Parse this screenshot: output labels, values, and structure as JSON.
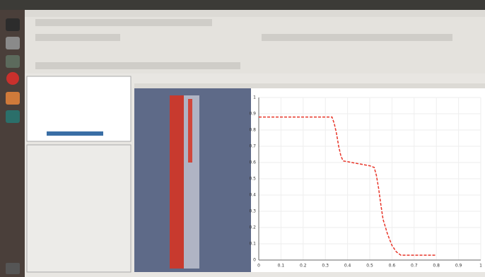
{
  "chart_data": {
    "type": "line",
    "x": [
      0,
      0.05,
      0.1,
      0.15,
      0.2,
      0.25,
      0.3,
      0.33,
      0.34,
      0.35,
      0.36,
      0.37,
      0.38,
      0.42,
      0.46,
      0.5,
      0.52,
      0.53,
      0.54,
      0.55,
      0.56,
      0.58,
      0.6,
      0.62,
      0.64,
      0.66,
      0.7,
      0.75,
      0.8
    ],
    "series": [
      {
        "color": "#e8362a",
        "values": [
          0.88,
          0.88,
          0.88,
          0.88,
          0.88,
          0.88,
          0.88,
          0.88,
          0.84,
          0.78,
          0.7,
          0.64,
          0.61,
          0.6,
          0.59,
          0.58,
          0.57,
          0.52,
          0.44,
          0.34,
          0.25,
          0.16,
          0.09,
          0.05,
          0.03,
          0.03,
          0.03,
          0.03,
          0.03
        ]
      }
    ],
    "xlim": [
      0,
      1
    ],
    "xticks": [
      0,
      0.1,
      0.2,
      0.3,
      0.4,
      0.5,
      0.6,
      0.7,
      0.8,
      0.9,
      1
    ],
    "ylim": [
      0,
      1
    ],
    "yticks": [
      0,
      0.1,
      0.2,
      0.3,
      0.4,
      0.5,
      0.6,
      0.7,
      0.8,
      0.9,
      1
    ],
    "grid": true
  }
}
